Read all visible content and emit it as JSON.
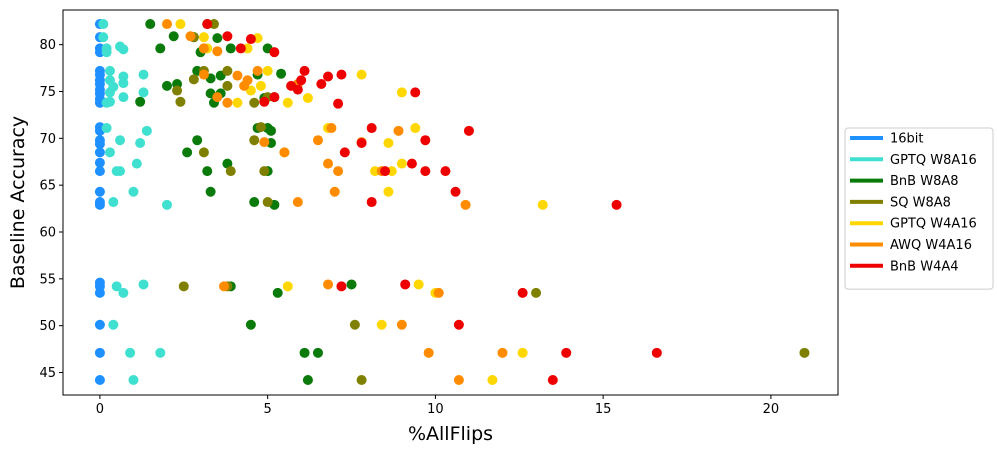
{
  "chart_data": {
    "type": "scatter",
    "xlabel": "%AllFlips",
    "ylabel": "Baseline Accuracy",
    "xlim": [
      -1.1,
      22.0
    ],
    "ylim": [
      42.6,
      83.7
    ],
    "xticks": [
      0,
      5,
      10,
      15,
      20
    ],
    "yticks": [
      45,
      50,
      55,
      60,
      65,
      70,
      75,
      80
    ],
    "grid": false,
    "legend_position": "right",
    "series": [
      {
        "name": "16bit",
        "color": "#1e90ff",
        "points": [
          [
            0,
            82.2
          ],
          [
            0,
            80.8
          ],
          [
            0,
            79.6
          ],
          [
            0,
            79.2
          ],
          [
            0,
            77.2
          ],
          [
            0,
            76.8
          ],
          [
            0,
            76.2
          ],
          [
            0,
            75.8
          ],
          [
            0,
            75.2
          ],
          [
            0,
            74.8
          ],
          [
            0,
            74.2
          ],
          [
            0,
            73.8
          ],
          [
            0,
            71.2
          ],
          [
            0,
            70.8
          ],
          [
            0,
            69.8
          ],
          [
            0,
            69.4
          ],
          [
            0,
            68.5
          ],
          [
            0,
            67.4
          ],
          [
            0,
            66.5
          ],
          [
            0,
            64.3
          ],
          [
            0,
            63.2
          ],
          [
            0,
            62.9
          ],
          [
            0,
            54.6
          ],
          [
            0,
            54.2
          ],
          [
            0,
            53.5
          ],
          [
            0,
            50.1
          ],
          [
            0,
            47.1
          ],
          [
            0,
            44.2
          ]
        ]
      },
      {
        "name": "GPTQ W8A16",
        "color": "#40e0d0",
        "points": [
          [
            0.1,
            82.2
          ],
          [
            0.1,
            80.8
          ],
          [
            0.2,
            79.6
          ],
          [
            0.2,
            79.2
          ],
          [
            0.3,
            77.2
          ],
          [
            0.3,
            76.2
          ],
          [
            0.4,
            75.5
          ],
          [
            0.3,
            74.9
          ],
          [
            0.2,
            73.8
          ],
          [
            0.3,
            73.9
          ],
          [
            0.2,
            71.1
          ],
          [
            0.6,
            79.8
          ],
          [
            0.7,
            79.5
          ],
          [
            0.7,
            76.6
          ],
          [
            0.7,
            75.9
          ],
          [
            0.7,
            74.4
          ],
          [
            1.3,
            76.8
          ],
          [
            1.3,
            74.9
          ],
          [
            1.4,
            70.8
          ],
          [
            0.6,
            69.8
          ],
          [
            0.3,
            68.5
          ],
          [
            1.2,
            69.5
          ],
          [
            1.1,
            67.3
          ],
          [
            0.5,
            66.5
          ],
          [
            0.6,
            66.5
          ],
          [
            1.0,
            64.3
          ],
          [
            0.4,
            63.2
          ],
          [
            2.0,
            62.9
          ],
          [
            0.5,
            54.2
          ],
          [
            0.7,
            53.5
          ],
          [
            1.3,
            54.4
          ],
          [
            0.4,
            50.1
          ],
          [
            0.9,
            47.1
          ],
          [
            1.8,
            47.1
          ],
          [
            1.0,
            44.2
          ]
        ]
      },
      {
        "name": "BnB W8A8",
        "color": "#0a7a0a",
        "points": [
          [
            1.5,
            82.2
          ],
          [
            1.8,
            79.6
          ],
          [
            2.0,
            75.6
          ],
          [
            2.3,
            75.8
          ],
          [
            2.2,
            80.9
          ],
          [
            2.8,
            80.8
          ],
          [
            3.0,
            79.2
          ],
          [
            2.9,
            77.2
          ],
          [
            3.3,
            76.4
          ],
          [
            3.6,
            76.7
          ],
          [
            3.6,
            74.8
          ],
          [
            3.3,
            74.8
          ],
          [
            3.4,
            73.8
          ],
          [
            3.5,
            80.7
          ],
          [
            3.2,
            82.2
          ],
          [
            3.9,
            79.6
          ],
          [
            4.7,
            76.8
          ],
          [
            4.9,
            74.3
          ],
          [
            5.2,
            74.4
          ],
          [
            5.4,
            76.9
          ],
          [
            5.0,
            79.6
          ],
          [
            1.2,
            73.9
          ],
          [
            2.9,
            69.8
          ],
          [
            2.6,
            68.5
          ],
          [
            4.7,
            71.1
          ],
          [
            5.0,
            71.1
          ],
          [
            5.1,
            70.8
          ],
          [
            5.1,
            69.5
          ],
          [
            3.2,
            66.5
          ],
          [
            3.8,
            67.3
          ],
          [
            5.0,
            66.5
          ],
          [
            3.3,
            64.3
          ],
          [
            4.6,
            63.2
          ],
          [
            5.2,
            62.9
          ],
          [
            3.9,
            54.2
          ],
          [
            5.3,
            53.5
          ],
          [
            7.5,
            54.4
          ],
          [
            4.5,
            50.1
          ],
          [
            6.1,
            47.1
          ],
          [
            6.5,
            47.1
          ],
          [
            6.2,
            44.2
          ]
        ]
      },
      {
        "name": "SQ W8A8",
        "color": "#808000",
        "points": [
          [
            2.3,
            75.1
          ],
          [
            2.4,
            73.9
          ],
          [
            2.8,
            76.3
          ],
          [
            3.1,
            77.2
          ],
          [
            3.4,
            82.2
          ],
          [
            3.8,
            75.6
          ],
          [
            3.8,
            77.2
          ],
          [
            4.6,
            73.8
          ],
          [
            5.0,
            74.4
          ],
          [
            2.8,
            80.8
          ],
          [
            3.1,
            79.6
          ],
          [
            4.6,
            69.8
          ],
          [
            4.8,
            71.2
          ],
          [
            3.1,
            68.5
          ],
          [
            3.9,
            66.5
          ],
          [
            4.9,
            66.5
          ],
          [
            5.0,
            63.2
          ],
          [
            2.5,
            54.2
          ],
          [
            3.8,
            54.2
          ],
          [
            7.6,
            50.1
          ],
          [
            7.8,
            44.2
          ],
          [
            13.0,
            53.5
          ],
          [
            21.0,
            47.1
          ]
        ]
      },
      {
        "name": "GPTQ W4A16",
        "color": "#ffd700",
        "points": [
          [
            2.4,
            82.2
          ],
          [
            3.1,
            80.8
          ],
          [
            3.2,
            79.6
          ],
          [
            4.4,
            79.6
          ],
          [
            4.7,
            80.7
          ],
          [
            4.5,
            75.1
          ],
          [
            4.8,
            75.6
          ],
          [
            5.0,
            77.2
          ],
          [
            5.6,
            73.8
          ],
          [
            6.2,
            74.3
          ],
          [
            7.8,
            76.8
          ],
          [
            9.0,
            74.9
          ],
          [
            4.1,
            73.8
          ],
          [
            6.8,
            71.1
          ],
          [
            9.4,
            71.1
          ],
          [
            8.6,
            69.5
          ],
          [
            9.0,
            67.3
          ],
          [
            8.2,
            66.5
          ],
          [
            8.7,
            66.5
          ],
          [
            8.6,
            64.3
          ],
          [
            5.5,
            68.5
          ],
          [
            13.2,
            62.9
          ],
          [
            5.6,
            54.2
          ],
          [
            9.5,
            54.4
          ],
          [
            10.0,
            53.5
          ],
          [
            8.4,
            50.1
          ],
          [
            12.6,
            47.1
          ],
          [
            11.7,
            44.2
          ]
        ]
      },
      {
        "name": "AWQ W4A16",
        "color": "#ff8c00",
        "points": [
          [
            2.0,
            82.2
          ],
          [
            2.7,
            80.9
          ],
          [
            3.1,
            79.6
          ],
          [
            3.5,
            79.3
          ],
          [
            4.3,
            75.6
          ],
          [
            4.1,
            76.7
          ],
          [
            3.5,
            74.4
          ],
          [
            3.8,
            73.8
          ],
          [
            4.4,
            76.2
          ],
          [
            3.1,
            76.8
          ],
          [
            4.7,
            77.2
          ],
          [
            5.9,
            75.8
          ],
          [
            5.5,
            68.5
          ],
          [
            4.9,
            69.6
          ],
          [
            6.5,
            69.8
          ],
          [
            6.9,
            71.1
          ],
          [
            7.1,
            66.5
          ],
          [
            6.8,
            67.3
          ],
          [
            8.4,
            66.5
          ],
          [
            7.8,
            69.6
          ],
          [
            7.0,
            64.3
          ],
          [
            8.9,
            70.8
          ],
          [
            5.9,
            63.2
          ],
          [
            10.9,
            62.9
          ],
          [
            3.7,
            54.2
          ],
          [
            6.8,
            54.4
          ],
          [
            10.1,
            53.5
          ],
          [
            9.0,
            50.1
          ],
          [
            9.8,
            47.1
          ],
          [
            12.0,
            47.1
          ],
          [
            10.7,
            44.2
          ]
        ]
      },
      {
        "name": "BnB W4A4",
        "color": "#ee0000",
        "points": [
          [
            3.2,
            82.2
          ],
          [
            3.8,
            80.9
          ],
          [
            4.5,
            80.6
          ],
          [
            4.2,
            79.6
          ],
          [
            5.2,
            79.2
          ],
          [
            5.7,
            75.6
          ],
          [
            5.9,
            75.2
          ],
          [
            6.0,
            76.2
          ],
          [
            6.1,
            77.2
          ],
          [
            6.6,
            75.8
          ],
          [
            6.8,
            76.6
          ],
          [
            7.2,
            76.8
          ],
          [
            7.1,
            73.7
          ],
          [
            4.9,
            73.9
          ],
          [
            5.2,
            74.4
          ],
          [
            9.4,
            74.9
          ],
          [
            7.8,
            69.5
          ],
          [
            8.1,
            71.1
          ],
          [
            7.3,
            68.5
          ],
          [
            9.7,
            69.8
          ],
          [
            11.0,
            70.8
          ],
          [
            9.3,
            67.3
          ],
          [
            9.7,
            66.5
          ],
          [
            10.3,
            66.5
          ],
          [
            10.6,
            64.3
          ],
          [
            8.1,
            63.2
          ],
          [
            8.5,
            66.5
          ],
          [
            15.4,
            62.9
          ],
          [
            7.2,
            54.2
          ],
          [
            9.1,
            54.4
          ],
          [
            12.6,
            53.5
          ],
          [
            10.7,
            50.1
          ],
          [
            13.9,
            47.1
          ],
          [
            16.6,
            47.1
          ],
          [
            13.5,
            44.2
          ]
        ]
      }
    ]
  }
}
